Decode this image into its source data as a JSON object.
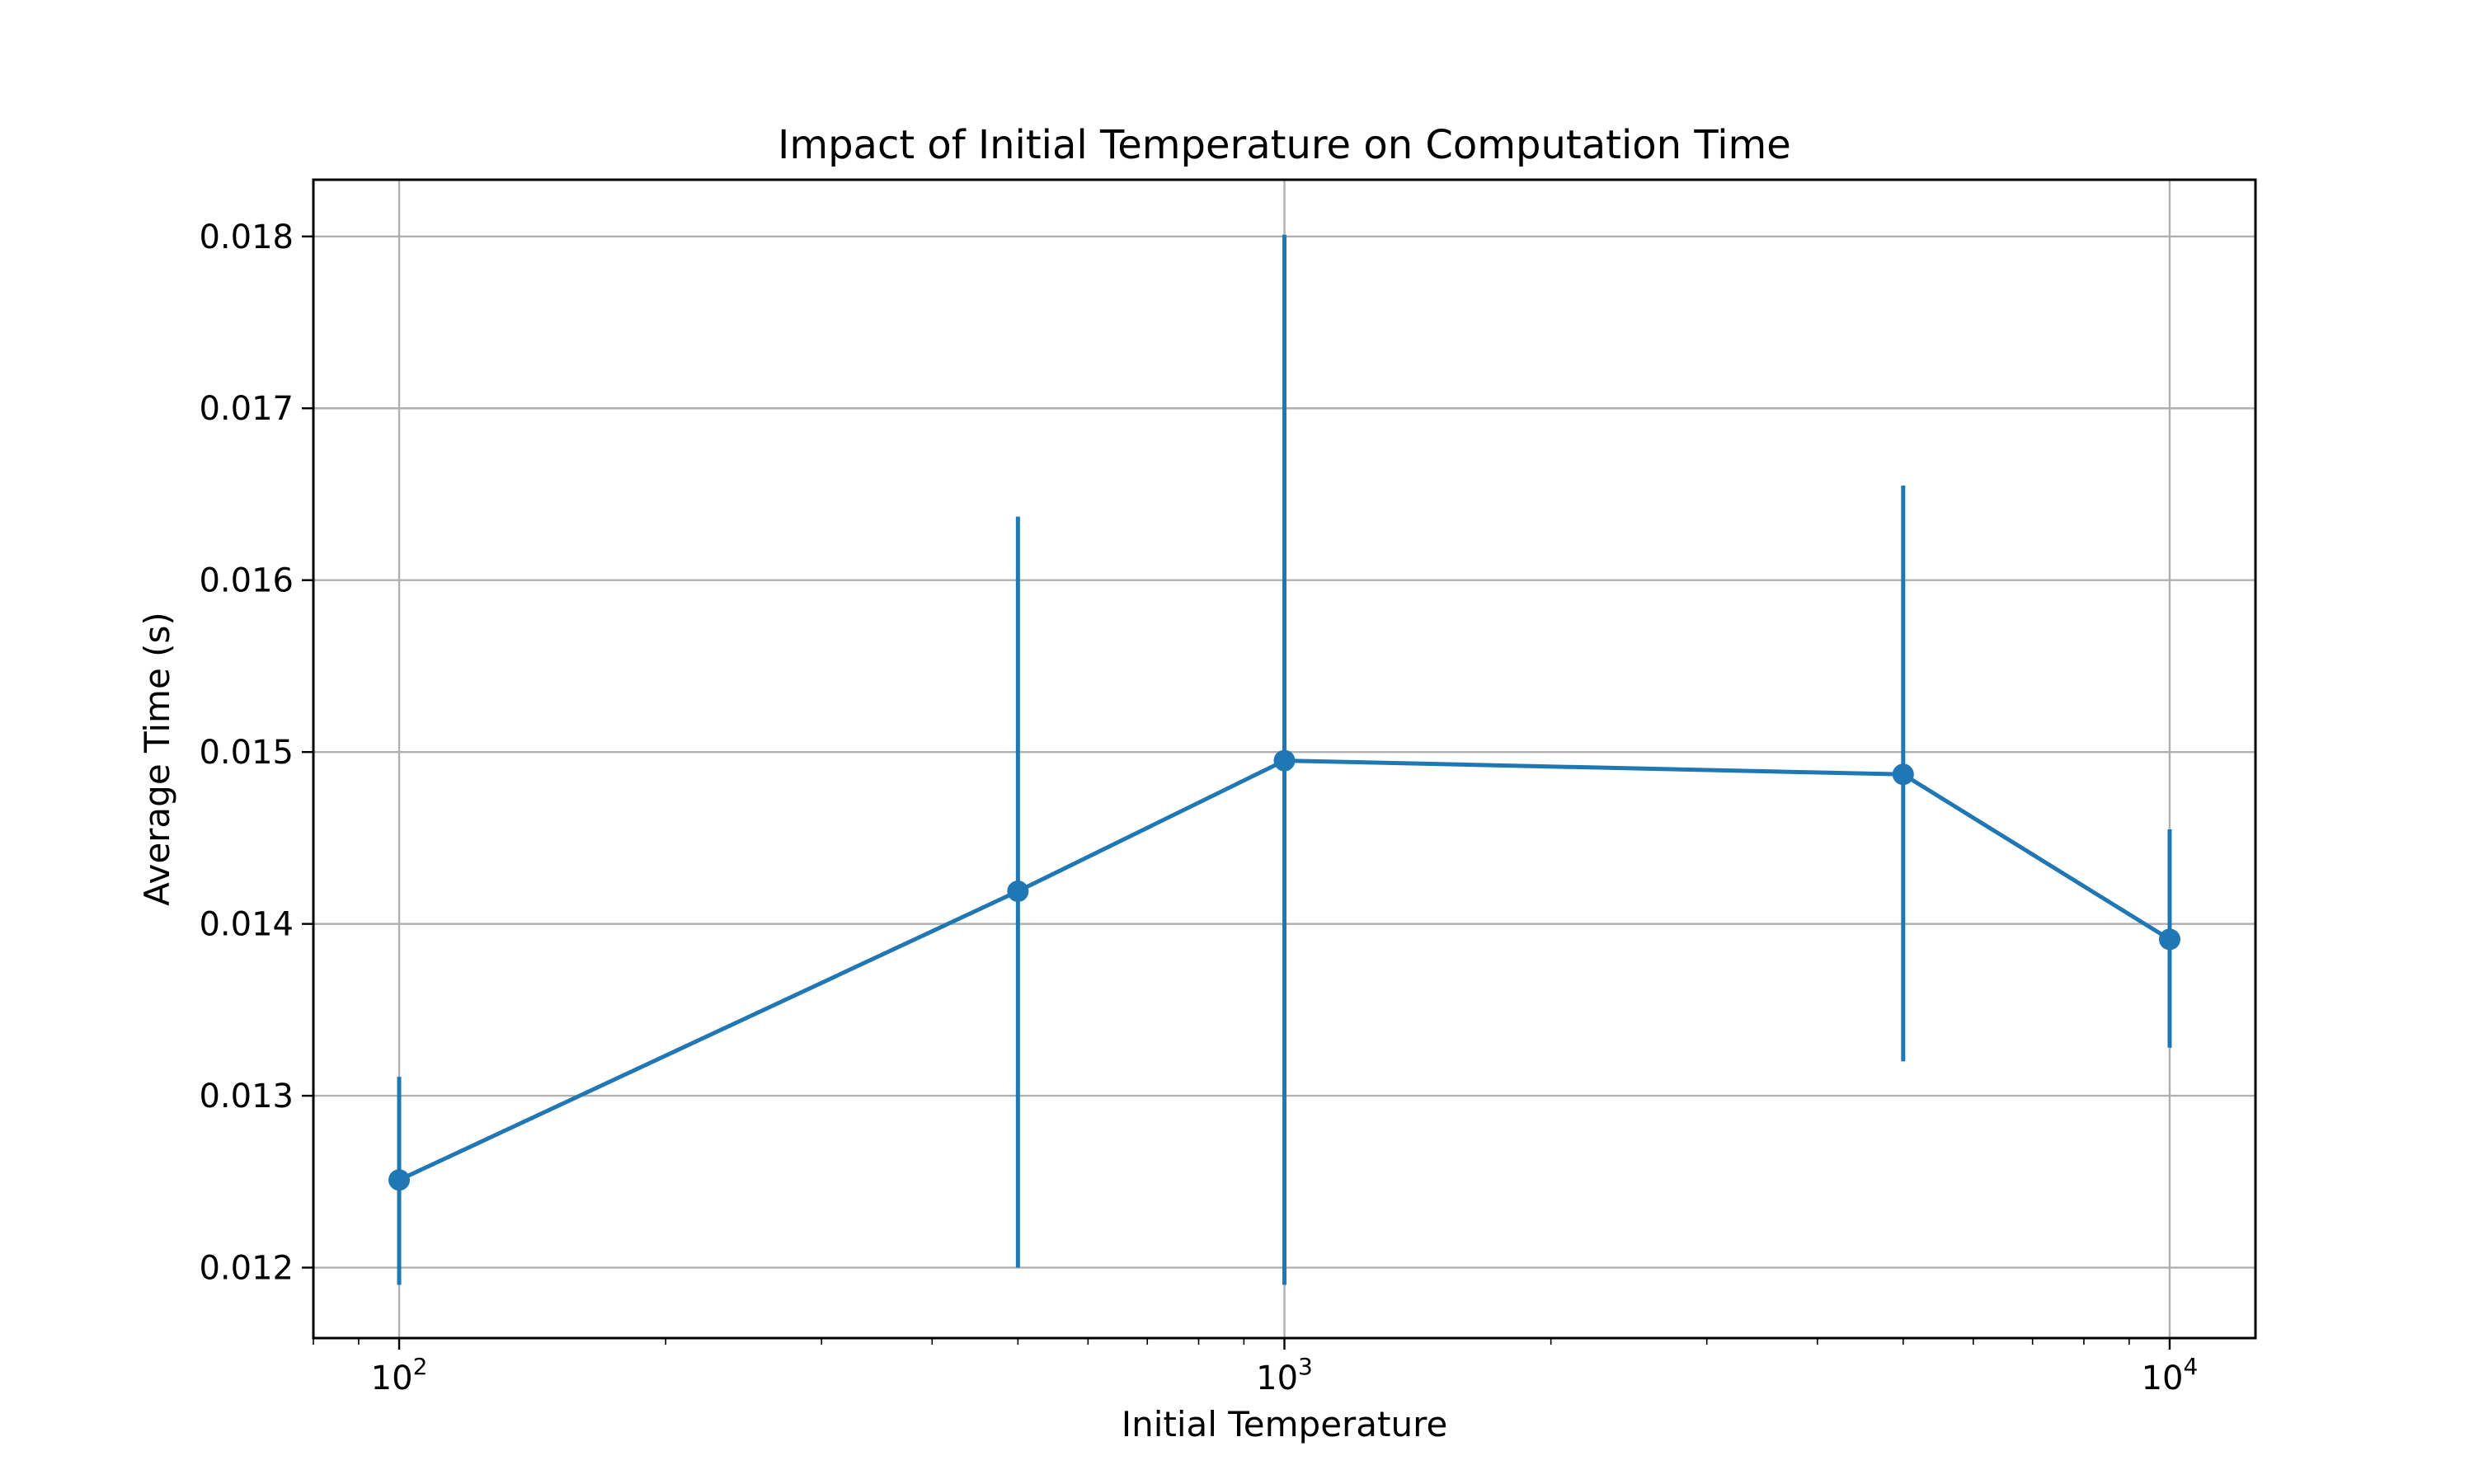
{
  "chart_data": {
    "type": "line",
    "title": "Impact of Initial Temperature on Computation Time",
    "xlabel": "Initial Temperature",
    "ylabel": "Average Time (s)",
    "x_scale": "log",
    "xlim": [
      80,
      12500
    ],
    "ylim": [
      0.01159,
      0.01833
    ],
    "grid": true,
    "x_major_ticks": [
      {
        "value": 100,
        "base": "10",
        "exp": "2"
      },
      {
        "value": 1000,
        "base": "10",
        "exp": "3"
      },
      {
        "value": 10000,
        "base": "10",
        "exp": "4"
      }
    ],
    "y_ticks": [
      0.012,
      0.013,
      0.014,
      0.015,
      0.016,
      0.017,
      0.018
    ],
    "y_tick_labels": [
      "0.012",
      "0.013",
      "0.014",
      "0.015",
      "0.016",
      "0.017",
      "0.018"
    ],
    "series": [
      {
        "color": "#1f77b4",
        "x": [
          100,
          500,
          1000,
          5000,
          10000
        ],
        "y": [
          0.01251,
          0.01419,
          0.01495,
          0.01487,
          0.01391
        ],
        "err_low": [
          0.0119,
          0.012,
          0.0119,
          0.0132,
          0.01328
        ],
        "err_high": [
          0.01311,
          0.01637,
          0.01801,
          0.01655,
          0.01455
        ]
      }
    ]
  }
}
